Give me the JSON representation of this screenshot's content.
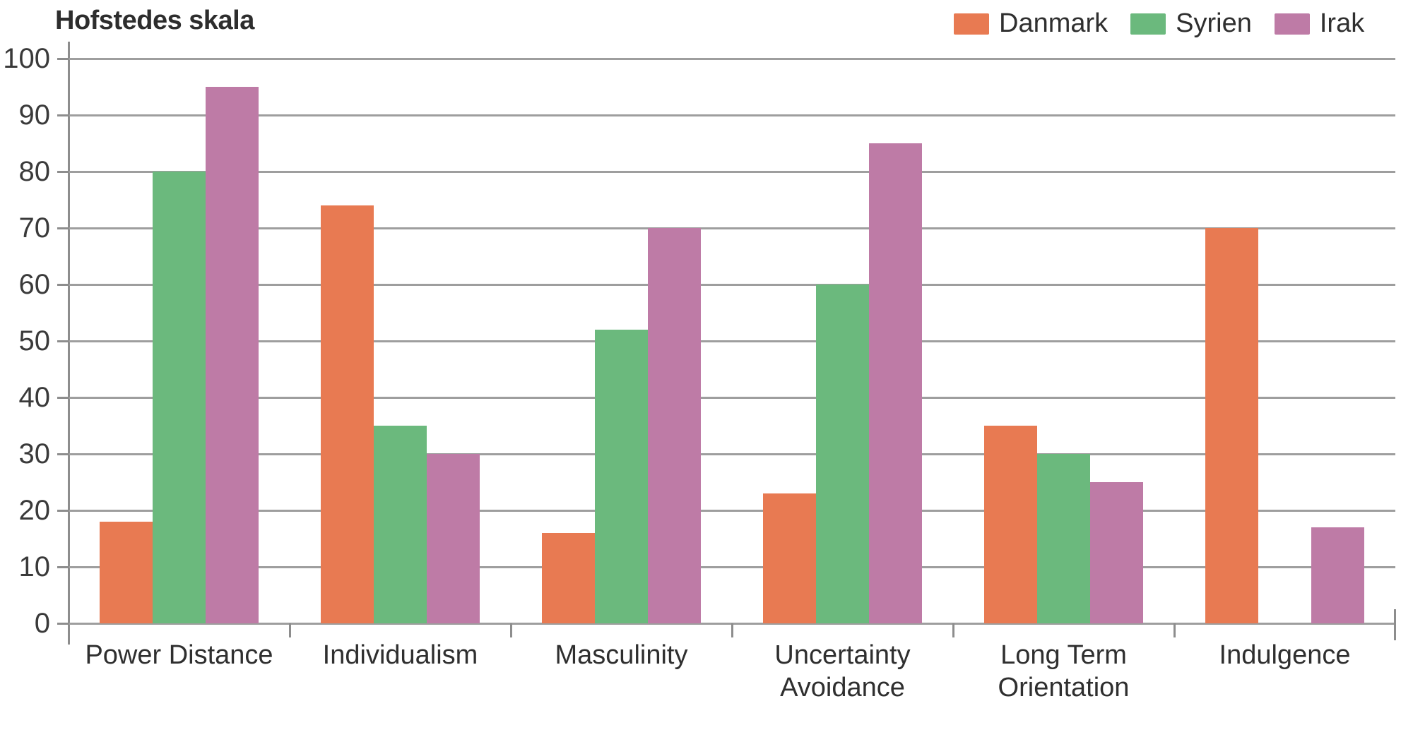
{
  "title": "Hofstedes skala",
  "legend": {
    "position": "top-right",
    "items": [
      {
        "label": "Danmark",
        "color": "#E87A52"
      },
      {
        "label": "Syrien",
        "color": "#6BB97D"
      },
      {
        "label": "Irak",
        "color": "#BE7BA6"
      }
    ]
  },
  "axis": {
    "yticks": [
      0,
      10,
      20,
      30,
      40,
      50,
      60,
      70,
      80,
      90,
      100
    ],
    "grid_color": "#9E9E9E",
    "axis_color": "#8D8D8D",
    "label_color": "#3A3A3A"
  },
  "chart_data": {
    "type": "bar",
    "title": "Hofstedes skala",
    "categories": [
      "Power Distance",
      "Individualism",
      "Masculinity",
      "Uncertainty Avoidance",
      "Long Term Orientation",
      "Indulgence"
    ],
    "category_lines": [
      [
        "Power Distance"
      ],
      [
        "Individualism"
      ],
      [
        "Masculinity"
      ],
      [
        "Uncertainty",
        "Avoidance"
      ],
      [
        "Long Term",
        "Orientation"
      ],
      [
        "Indulgence"
      ]
    ],
    "series": [
      {
        "name": "Danmark",
        "color": "#E87A52",
        "values": [
          18,
          74,
          16,
          23,
          35,
          70
        ]
      },
      {
        "name": "Syrien",
        "color": "#6BB97D",
        "values": [
          80,
          35,
          52,
          60,
          30,
          null
        ]
      },
      {
        "name": "Irak",
        "color": "#BE7BA6",
        "values": [
          95,
          30,
          70,
          85,
          25,
          17
        ]
      }
    ],
    "xlabel": "",
    "ylabel": "",
    "ylim": [
      0,
      100
    ],
    "ytick_step": 10,
    "grid": "horizontal",
    "legend_position": "top-right"
  }
}
